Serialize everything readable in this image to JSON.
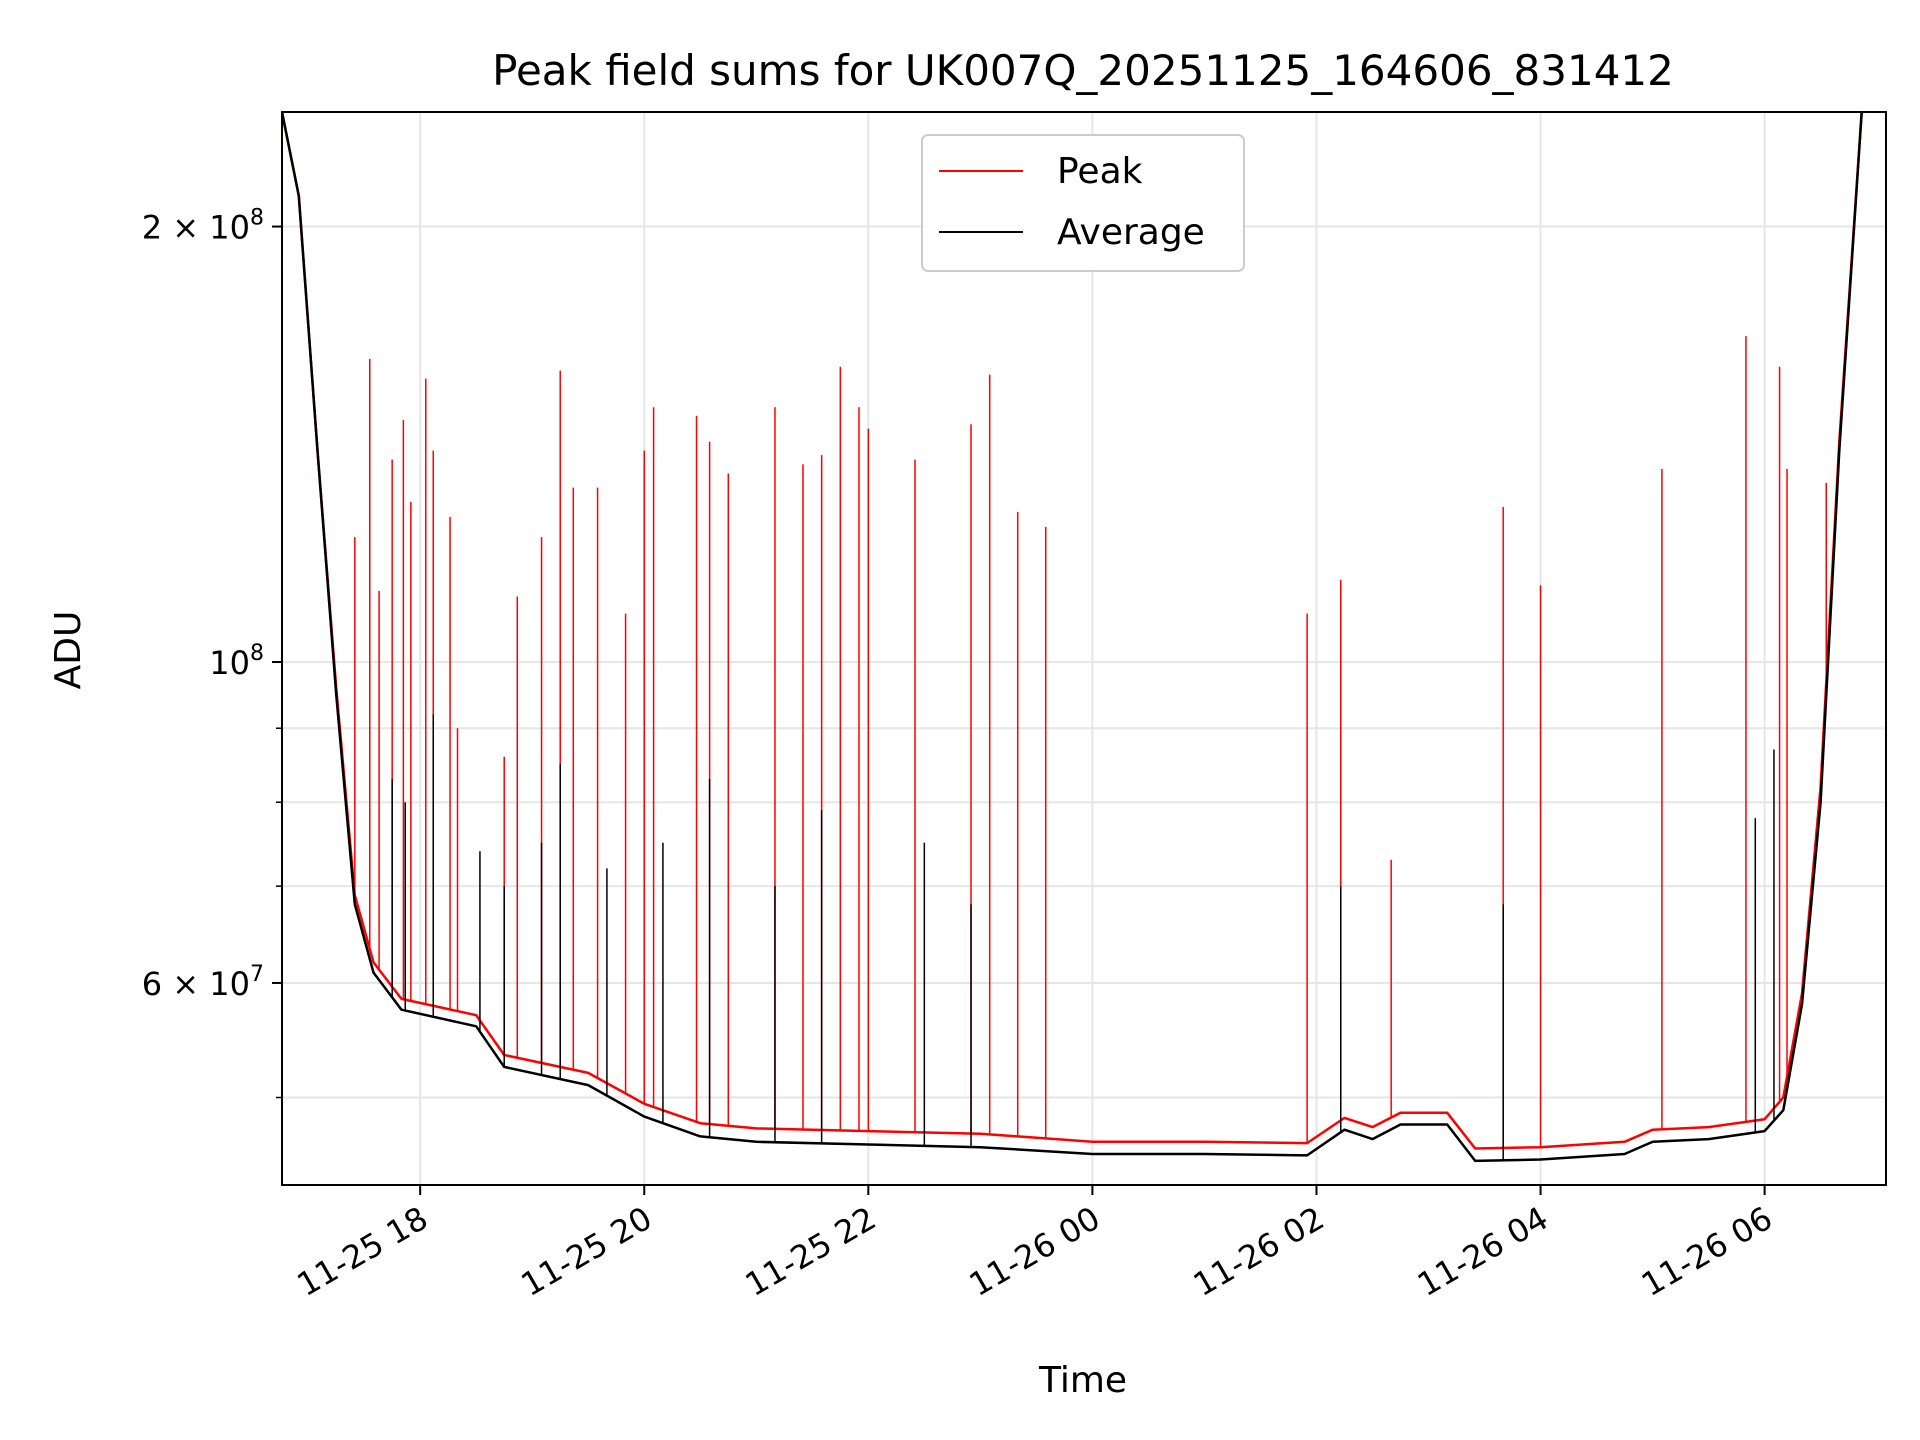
{
  "chart_data": {
    "type": "line",
    "title": "Peak field sums for UK007Q_20251125_164606_831412",
    "xlabel": "Time",
    "ylabel": "ADU",
    "yscale": "log",
    "ylim": [
      43500000,
      240000000
    ],
    "xlim": [
      "2025-11-25T16:46:00",
      "2025-11-26T07:05:00"
    ],
    "grid": true,
    "legend_position": "top-center",
    "x_ticks": [
      {
        "label": "11-25 18",
        "value": "2025-11-25T18:00:00"
      },
      {
        "label": "11-25 20",
        "value": "2025-11-25T20:00:00"
      },
      {
        "label": "11-25 22",
        "value": "2025-11-25T22:00:00"
      },
      {
        "label": "11-26 00",
        "value": "2025-11-26T00:00:00"
      },
      {
        "label": "11-26 02",
        "value": "2025-11-26T02:00:00"
      },
      {
        "label": "11-26 04",
        "value": "2025-11-26T04:00:00"
      },
      {
        "label": "11-26 06",
        "value": "2025-11-26T06:00:00"
      }
    ],
    "y_ticks": [
      {
        "label": "2 × 10⁸",
        "mantissa": "2 × 10",
        "exponent": "8",
        "value": 200000000
      },
      {
        "label": "10⁸",
        "mantissa": "10",
        "exponent": "8",
        "value": 100000000
      },
      {
        "label": "6 × 10⁷",
        "mantissa": "6 × 10",
        "exponent": "7",
        "value": 60000000
      }
    ],
    "y_minor_ticks": [
      50000000,
      70000000,
      80000000,
      90000000
    ],
    "series": [
      {
        "name": "Average",
        "color": "#000000",
        "baseline": [
          [
            "2025-11-25T16:46:00",
            240000000
          ],
          [
            "2025-11-25T16:55:00",
            210000000
          ],
          [
            "2025-11-25T17:05:00",
            140000000
          ],
          [
            "2025-11-25T17:15:00",
            95000000
          ],
          [
            "2025-11-25T17:25:00",
            68000000
          ],
          [
            "2025-11-25T17:35:00",
            61000000
          ],
          [
            "2025-11-25T17:50:00",
            57500000
          ],
          [
            "2025-11-25T18:30:00",
            56000000
          ],
          [
            "2025-11-25T18:45:00",
            52500000
          ],
          [
            "2025-11-25T19:30:00",
            51000000
          ],
          [
            "2025-11-25T20:00:00",
            48500000
          ],
          [
            "2025-11-25T20:30:00",
            47000000
          ],
          [
            "2025-11-25T21:00:00",
            46600000
          ],
          [
            "2025-11-25T22:00:00",
            46400000
          ],
          [
            "2025-11-25T23:00:00",
            46200000
          ],
          [
            "2025-11-26T00:00:00",
            45700000
          ],
          [
            "2025-11-26T01:00:00",
            45700000
          ],
          [
            "2025-11-26T01:55:00",
            45600000
          ],
          [
            "2025-11-26T02:15:00",
            47500000
          ],
          [
            "2025-11-26T02:30:00",
            46800000
          ],
          [
            "2025-11-26T02:45:00",
            47900000
          ],
          [
            "2025-11-26T03:10:00",
            47900000
          ],
          [
            "2025-11-26T03:25:00",
            45200000
          ],
          [
            "2025-11-26T04:00:00",
            45300000
          ],
          [
            "2025-11-26T04:45:00",
            45700000
          ],
          [
            "2025-11-26T05:00:00",
            46600000
          ],
          [
            "2025-11-26T05:30:00",
            46800000
          ],
          [
            "2025-11-26T06:00:00",
            47400000
          ],
          [
            "2025-11-26T06:10:00",
            49000000
          ],
          [
            "2025-11-26T06:20:00",
            58000000
          ],
          [
            "2025-11-26T06:30:00",
            80000000
          ],
          [
            "2025-11-26T06:40:00",
            140000000
          ],
          [
            "2025-11-26T06:52:00",
            240000000
          ]
        ],
        "spikes": [
          [
            "2025-11-25T17:45:00",
            83000000
          ],
          [
            "2025-11-25T17:52:00",
            80000000
          ],
          [
            "2025-11-25T18:07:00",
            92000000
          ],
          [
            "2025-11-25T18:32:00",
            74000000
          ],
          [
            "2025-11-25T18:45:00",
            70000000
          ],
          [
            "2025-11-25T19:05:00",
            75000000
          ],
          [
            "2025-11-25T19:15:00",
            85000000
          ],
          [
            "2025-11-25T19:40:00",
            72000000
          ],
          [
            "2025-11-25T20:10:00",
            75000000
          ],
          [
            "2025-11-25T20:35:00",
            83000000
          ],
          [
            "2025-11-25T21:10:00",
            70000000
          ],
          [
            "2025-11-25T21:35:00",
            79000000
          ],
          [
            "2025-11-25T22:30:00",
            75000000
          ],
          [
            "2025-11-25T22:55:00",
            68000000
          ],
          [
            "2025-11-26T02:13:00",
            70000000
          ],
          [
            "2025-11-26T03:40:00",
            68000000
          ],
          [
            "2025-11-26T05:55:00",
            78000000
          ],
          [
            "2025-11-26T06:05:00",
            87000000
          ]
        ]
      },
      {
        "name": "Peak",
        "color": "#ff0000",
        "baseline": [
          [
            "2025-11-25T16:46:00",
            240000000
          ],
          [
            "2025-11-25T16:55:00",
            210000000
          ],
          [
            "2025-11-25T17:05:00",
            140000000
          ],
          [
            "2025-11-25T17:15:00",
            96000000
          ],
          [
            "2025-11-25T17:25:00",
            69000000
          ],
          [
            "2025-11-25T17:35:00",
            62000000
          ],
          [
            "2025-11-25T17:50:00",
            58500000
          ],
          [
            "2025-11-25T18:30:00",
            57000000
          ],
          [
            "2025-11-25T18:45:00",
            53500000
          ],
          [
            "2025-11-25T19:30:00",
            52000000
          ],
          [
            "2025-11-25T20:00:00",
            49500000
          ],
          [
            "2025-11-25T20:30:00",
            48000000
          ],
          [
            "2025-11-25T21:00:00",
            47600000
          ],
          [
            "2025-11-25T22:00:00",
            47400000
          ],
          [
            "2025-11-25T23:00:00",
            47200000
          ],
          [
            "2025-11-26T00:00:00",
            46600000
          ],
          [
            "2025-11-26T01:00:00",
            46600000
          ],
          [
            "2025-11-26T01:55:00",
            46500000
          ],
          [
            "2025-11-26T02:15:00",
            48400000
          ],
          [
            "2025-11-26T02:30:00",
            47700000
          ],
          [
            "2025-11-26T02:45:00",
            48800000
          ],
          [
            "2025-11-26T03:10:00",
            48800000
          ],
          [
            "2025-11-26T03:25:00",
            46100000
          ],
          [
            "2025-11-26T04:00:00",
            46200000
          ],
          [
            "2025-11-26T04:45:00",
            46600000
          ],
          [
            "2025-11-26T05:00:00",
            47500000
          ],
          [
            "2025-11-26T05:30:00",
            47700000
          ],
          [
            "2025-11-26T06:00:00",
            48300000
          ],
          [
            "2025-11-26T06:10:00",
            50000000
          ],
          [
            "2025-11-26T06:20:00",
            59000000
          ],
          [
            "2025-11-26T06:30:00",
            82000000
          ],
          [
            "2025-11-26T06:40:00",
            142000000
          ],
          [
            "2025-11-26T06:52:00",
            240000000
          ]
        ],
        "spikes": [
          [
            "2025-11-25T17:25:00",
            122000000
          ],
          [
            "2025-11-25T17:33:00",
            162000000
          ],
          [
            "2025-11-25T17:38:00",
            112000000
          ],
          [
            "2025-11-25T17:45:00",
            138000000
          ],
          [
            "2025-11-25T17:51:00",
            147000000
          ],
          [
            "2025-11-25T17:55:00",
            129000000
          ],
          [
            "2025-11-25T18:03:00",
            157000000
          ],
          [
            "2025-11-25T18:07:00",
            140000000
          ],
          [
            "2025-11-25T18:16:00",
            126000000
          ],
          [
            "2025-11-25T18:20:00",
            90000000
          ],
          [
            "2025-11-25T18:45:00",
            86000000
          ],
          [
            "2025-11-25T18:52:00",
            111000000
          ],
          [
            "2025-11-25T19:05:00",
            122000000
          ],
          [
            "2025-11-25T19:15:00",
            159000000
          ],
          [
            "2025-11-25T19:22:00",
            132000000
          ],
          [
            "2025-11-25T19:35:00",
            132000000
          ],
          [
            "2025-11-25T19:50:00",
            108000000
          ],
          [
            "2025-11-25T20:00:00",
            140000000
          ],
          [
            "2025-11-25T20:05:00",
            150000000
          ],
          [
            "2025-11-25T20:28:00",
            148000000
          ],
          [
            "2025-11-25T20:35:00",
            142000000
          ],
          [
            "2025-11-25T20:45:00",
            135000000
          ],
          [
            "2025-11-25T21:10:00",
            150000000
          ],
          [
            "2025-11-25T21:25:00",
            137000000
          ],
          [
            "2025-11-25T21:35:00",
            139000000
          ],
          [
            "2025-11-25T21:45:00",
            160000000
          ],
          [
            "2025-11-25T21:55:00",
            150000000
          ],
          [
            "2025-11-25T22:00:00",
            145000000
          ],
          [
            "2025-11-25T22:25:00",
            138000000
          ],
          [
            "2025-11-25T22:55:00",
            146000000
          ],
          [
            "2025-11-25T23:05:00",
            158000000
          ],
          [
            "2025-11-25T23:20:00",
            127000000
          ],
          [
            "2025-11-25T23:35:00",
            124000000
          ],
          [
            "2025-11-26T01:55:00",
            108000000
          ],
          [
            "2025-11-26T02:13:00",
            114000000
          ],
          [
            "2025-11-26T02:40:00",
            73000000
          ],
          [
            "2025-11-26T03:40:00",
            128000000
          ],
          [
            "2025-11-26T04:00:00",
            113000000
          ],
          [
            "2025-11-26T05:05:00",
            136000000
          ],
          [
            "2025-11-26T05:50:00",
            168000000
          ],
          [
            "2025-11-26T06:08:00",
            160000000
          ],
          [
            "2025-11-26T06:12:00",
            136000000
          ],
          [
            "2025-11-26T06:33:00",
            133000000
          ]
        ]
      }
    ],
    "legend": [
      {
        "label": "Peak",
        "color": "#ff0000"
      },
      {
        "label": "Average",
        "color": "#000000"
      }
    ]
  }
}
